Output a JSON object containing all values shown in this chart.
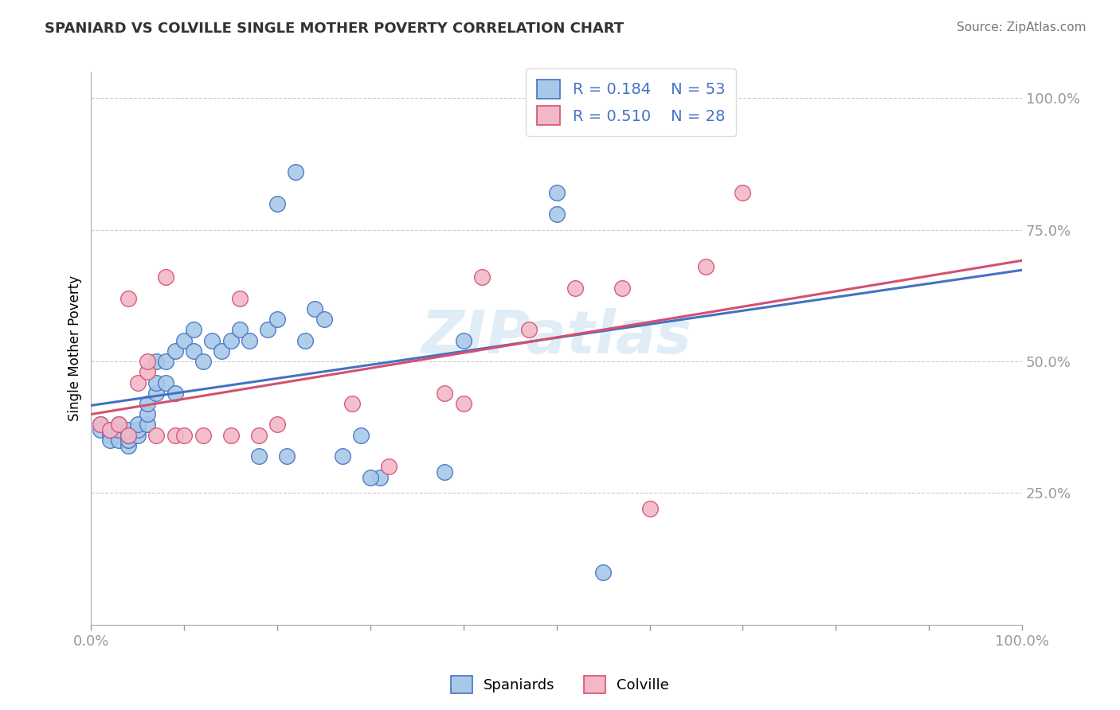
{
  "title": "SPANIARD VS COLVILLE SINGLE MOTHER POVERTY CORRELATION CHART",
  "source": "Source: ZipAtlas.com",
  "ylabel": "Single Mother Poverty",
  "legend_label1": "Spaniards",
  "legend_label2": "Colville",
  "R1": 0.184,
  "N1": 53,
  "R2": 0.51,
  "N2": 28,
  "color_blue": "#A8C8E8",
  "color_pink": "#F2B8C8",
  "line_blue": "#4472C4",
  "line_pink": "#D45070",
  "watermark": "ZIPatlas",
  "blue_x": [
    0.01,
    0.01,
    0.02,
    0.02,
    0.02,
    0.03,
    0.03,
    0.03,
    0.03,
    0.04,
    0.04,
    0.04,
    0.04,
    0.05,
    0.05,
    0.05,
    0.06,
    0.06,
    0.06,
    0.07,
    0.07,
    0.07,
    0.08,
    0.08,
    0.09,
    0.09,
    0.1,
    0.11,
    0.11,
    0.12,
    0.13,
    0.14,
    0.15,
    0.16,
    0.17,
    0.18,
    0.19,
    0.2,
    0.21,
    0.23,
    0.24,
    0.25,
    0.27,
    0.29,
    0.31,
    0.2,
    0.22,
    0.3,
    0.38,
    0.4,
    0.5,
    0.55,
    0.5
  ],
  "blue_y": [
    0.38,
    0.37,
    0.36,
    0.35,
    0.37,
    0.36,
    0.35,
    0.37,
    0.38,
    0.34,
    0.35,
    0.36,
    0.37,
    0.36,
    0.37,
    0.38,
    0.38,
    0.4,
    0.42,
    0.44,
    0.46,
    0.5,
    0.46,
    0.5,
    0.44,
    0.52,
    0.54,
    0.52,
    0.56,
    0.5,
    0.54,
    0.52,
    0.54,
    0.56,
    0.54,
    0.32,
    0.56,
    0.58,
    0.32,
    0.54,
    0.6,
    0.58,
    0.32,
    0.36,
    0.28,
    0.8,
    0.86,
    0.28,
    0.29,
    0.54,
    0.78,
    0.1,
    0.82
  ],
  "pink_x": [
    0.01,
    0.02,
    0.03,
    0.04,
    0.04,
    0.05,
    0.06,
    0.06,
    0.07,
    0.08,
    0.09,
    0.1,
    0.12,
    0.15,
    0.16,
    0.18,
    0.2,
    0.28,
    0.32,
    0.38,
    0.4,
    0.42,
    0.47,
    0.52,
    0.57,
    0.6,
    0.66,
    0.7
  ],
  "pink_y": [
    0.38,
    0.37,
    0.38,
    0.62,
    0.36,
    0.46,
    0.48,
    0.5,
    0.36,
    0.66,
    0.36,
    0.36,
    0.36,
    0.36,
    0.62,
    0.36,
    0.38,
    0.42,
    0.3,
    0.44,
    0.42,
    0.66,
    0.56,
    0.64,
    0.64,
    0.22,
    0.68,
    0.82
  ]
}
